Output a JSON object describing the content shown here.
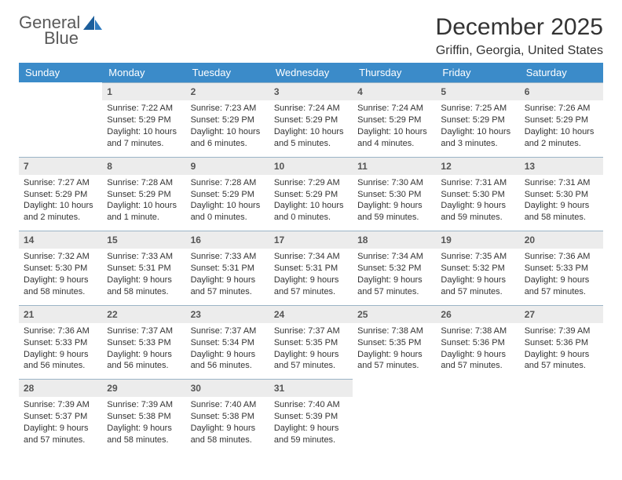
{
  "brand": {
    "word1": "General",
    "word2": "Blue"
  },
  "title": "December 2025",
  "location": "Griffin, Georgia, United States",
  "colors": {
    "header_bg": "#3b8bc9",
    "header_text": "#ffffff",
    "daynum_bg": "#ececec",
    "daynum_text": "#555555",
    "rule": "#9bb4c6",
    "body_text": "#333333",
    "logo_gray": "#5a5a5a",
    "logo_blue": "#2f7bbf",
    "page_bg": "#ffffff"
  },
  "typography": {
    "title_fontsize": 30,
    "location_fontsize": 16,
    "dayheader_fontsize": 13,
    "daynum_fontsize": 12,
    "body_fontsize": 11,
    "logo_fontsize": 22
  },
  "columns": [
    "Sunday",
    "Monday",
    "Tuesday",
    "Wednesday",
    "Thursday",
    "Friday",
    "Saturday"
  ],
  "weeks": [
    [
      null,
      {
        "n": "1",
        "sr": "Sunrise: 7:22 AM",
        "ss": "Sunset: 5:29 PM",
        "dl1": "Daylight: 10 hours",
        "dl2": "and 7 minutes."
      },
      {
        "n": "2",
        "sr": "Sunrise: 7:23 AM",
        "ss": "Sunset: 5:29 PM",
        "dl1": "Daylight: 10 hours",
        "dl2": "and 6 minutes."
      },
      {
        "n": "3",
        "sr": "Sunrise: 7:24 AM",
        "ss": "Sunset: 5:29 PM",
        "dl1": "Daylight: 10 hours",
        "dl2": "and 5 minutes."
      },
      {
        "n": "4",
        "sr": "Sunrise: 7:24 AM",
        "ss": "Sunset: 5:29 PM",
        "dl1": "Daylight: 10 hours",
        "dl2": "and 4 minutes."
      },
      {
        "n": "5",
        "sr": "Sunrise: 7:25 AM",
        "ss": "Sunset: 5:29 PM",
        "dl1": "Daylight: 10 hours",
        "dl2": "and 3 minutes."
      },
      {
        "n": "6",
        "sr": "Sunrise: 7:26 AM",
        "ss": "Sunset: 5:29 PM",
        "dl1": "Daylight: 10 hours",
        "dl2": "and 2 minutes."
      }
    ],
    [
      {
        "n": "7",
        "sr": "Sunrise: 7:27 AM",
        "ss": "Sunset: 5:29 PM",
        "dl1": "Daylight: 10 hours",
        "dl2": "and 2 minutes."
      },
      {
        "n": "8",
        "sr": "Sunrise: 7:28 AM",
        "ss": "Sunset: 5:29 PM",
        "dl1": "Daylight: 10 hours",
        "dl2": "and 1 minute."
      },
      {
        "n": "9",
        "sr": "Sunrise: 7:28 AM",
        "ss": "Sunset: 5:29 PM",
        "dl1": "Daylight: 10 hours",
        "dl2": "and 0 minutes."
      },
      {
        "n": "10",
        "sr": "Sunrise: 7:29 AM",
        "ss": "Sunset: 5:29 PM",
        "dl1": "Daylight: 10 hours",
        "dl2": "and 0 minutes."
      },
      {
        "n": "11",
        "sr": "Sunrise: 7:30 AM",
        "ss": "Sunset: 5:30 PM",
        "dl1": "Daylight: 9 hours",
        "dl2": "and 59 minutes."
      },
      {
        "n": "12",
        "sr": "Sunrise: 7:31 AM",
        "ss": "Sunset: 5:30 PM",
        "dl1": "Daylight: 9 hours",
        "dl2": "and 59 minutes."
      },
      {
        "n": "13",
        "sr": "Sunrise: 7:31 AM",
        "ss": "Sunset: 5:30 PM",
        "dl1": "Daylight: 9 hours",
        "dl2": "and 58 minutes."
      }
    ],
    [
      {
        "n": "14",
        "sr": "Sunrise: 7:32 AM",
        "ss": "Sunset: 5:30 PM",
        "dl1": "Daylight: 9 hours",
        "dl2": "and 58 minutes."
      },
      {
        "n": "15",
        "sr": "Sunrise: 7:33 AM",
        "ss": "Sunset: 5:31 PM",
        "dl1": "Daylight: 9 hours",
        "dl2": "and 58 minutes."
      },
      {
        "n": "16",
        "sr": "Sunrise: 7:33 AM",
        "ss": "Sunset: 5:31 PM",
        "dl1": "Daylight: 9 hours",
        "dl2": "and 57 minutes."
      },
      {
        "n": "17",
        "sr": "Sunrise: 7:34 AM",
        "ss": "Sunset: 5:31 PM",
        "dl1": "Daylight: 9 hours",
        "dl2": "and 57 minutes."
      },
      {
        "n": "18",
        "sr": "Sunrise: 7:34 AM",
        "ss": "Sunset: 5:32 PM",
        "dl1": "Daylight: 9 hours",
        "dl2": "and 57 minutes."
      },
      {
        "n": "19",
        "sr": "Sunrise: 7:35 AM",
        "ss": "Sunset: 5:32 PM",
        "dl1": "Daylight: 9 hours",
        "dl2": "and 57 minutes."
      },
      {
        "n": "20",
        "sr": "Sunrise: 7:36 AM",
        "ss": "Sunset: 5:33 PM",
        "dl1": "Daylight: 9 hours",
        "dl2": "and 57 minutes."
      }
    ],
    [
      {
        "n": "21",
        "sr": "Sunrise: 7:36 AM",
        "ss": "Sunset: 5:33 PM",
        "dl1": "Daylight: 9 hours",
        "dl2": "and 56 minutes."
      },
      {
        "n": "22",
        "sr": "Sunrise: 7:37 AM",
        "ss": "Sunset: 5:33 PM",
        "dl1": "Daylight: 9 hours",
        "dl2": "and 56 minutes."
      },
      {
        "n": "23",
        "sr": "Sunrise: 7:37 AM",
        "ss": "Sunset: 5:34 PM",
        "dl1": "Daylight: 9 hours",
        "dl2": "and 56 minutes."
      },
      {
        "n": "24",
        "sr": "Sunrise: 7:37 AM",
        "ss": "Sunset: 5:35 PM",
        "dl1": "Daylight: 9 hours",
        "dl2": "and 57 minutes."
      },
      {
        "n": "25",
        "sr": "Sunrise: 7:38 AM",
        "ss": "Sunset: 5:35 PM",
        "dl1": "Daylight: 9 hours",
        "dl2": "and 57 minutes."
      },
      {
        "n": "26",
        "sr": "Sunrise: 7:38 AM",
        "ss": "Sunset: 5:36 PM",
        "dl1": "Daylight: 9 hours",
        "dl2": "and 57 minutes."
      },
      {
        "n": "27",
        "sr": "Sunrise: 7:39 AM",
        "ss": "Sunset: 5:36 PM",
        "dl1": "Daylight: 9 hours",
        "dl2": "and 57 minutes."
      }
    ],
    [
      {
        "n": "28",
        "sr": "Sunrise: 7:39 AM",
        "ss": "Sunset: 5:37 PM",
        "dl1": "Daylight: 9 hours",
        "dl2": "and 57 minutes."
      },
      {
        "n": "29",
        "sr": "Sunrise: 7:39 AM",
        "ss": "Sunset: 5:38 PM",
        "dl1": "Daylight: 9 hours",
        "dl2": "and 58 minutes."
      },
      {
        "n": "30",
        "sr": "Sunrise: 7:40 AM",
        "ss": "Sunset: 5:38 PM",
        "dl1": "Daylight: 9 hours",
        "dl2": "and 58 minutes."
      },
      {
        "n": "31",
        "sr": "Sunrise: 7:40 AM",
        "ss": "Sunset: 5:39 PM",
        "dl1": "Daylight: 9 hours",
        "dl2": "and 59 minutes."
      },
      null,
      null,
      null
    ]
  ]
}
